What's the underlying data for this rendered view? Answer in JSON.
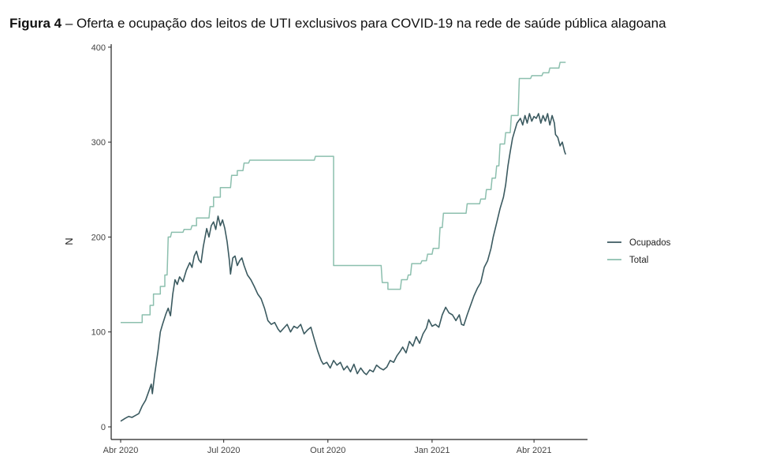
{
  "title_bold": "Figura 4",
  "title_rest": " – Oferta e ocupação dos leitos de UTI exclusivos para COVID-19 na rede de saúde pública alagoana",
  "chart_data": {
    "type": "line",
    "title": "Figura 4 – Oferta e ocupação dos leitos de UTI exclusivos para COVID-19 na rede de saúde pública alagoana",
    "xlabel": "",
    "ylabel": "N",
    "x_unit": "days since 2020-04-01",
    "xlim": [
      0,
      410
    ],
    "ylim": [
      0,
      400
    ],
    "x_ticks": [
      {
        "day": 0,
        "label": "Abr 2020"
      },
      {
        "day": 91,
        "label": "Jul 2020"
      },
      {
        "day": 183,
        "label": "Out 2020"
      },
      {
        "day": 275,
        "label": "Jan 2021"
      },
      {
        "day": 365,
        "label": "Abr 2021"
      }
    ],
    "y_ticks": [
      0,
      100,
      200,
      300,
      400
    ],
    "grid": false,
    "legend_position": "right",
    "colors": {
      "Ocupados": "#3b5a60",
      "Total": "#8cbfae"
    },
    "series": [
      {
        "name": "Ocupados",
        "shape": "line",
        "points": [
          [
            0,
            6
          ],
          [
            4,
            9
          ],
          [
            7,
            11
          ],
          [
            10,
            10
          ],
          [
            13,
            12
          ],
          [
            16,
            14
          ],
          [
            19,
            22
          ],
          [
            22,
            28
          ],
          [
            25,
            38
          ],
          [
            27,
            45
          ],
          [
            28,
            35
          ],
          [
            30,
            55
          ],
          [
            33,
            80
          ],
          [
            35,
            100
          ],
          [
            37,
            108
          ],
          [
            40,
            119
          ],
          [
            42,
            125
          ],
          [
            44,
            117
          ],
          [
            46,
            140
          ],
          [
            48,
            155
          ],
          [
            50,
            150
          ],
          [
            52,
            158
          ],
          [
            55,
            153
          ],
          [
            58,
            165
          ],
          [
            61,
            173
          ],
          [
            63,
            168
          ],
          [
            65,
            180
          ],
          [
            67,
            185
          ],
          [
            69,
            176
          ],
          [
            71,
            173
          ],
          [
            73,
            190
          ],
          [
            76,
            209
          ],
          [
            78,
            200
          ],
          [
            80,
            212
          ],
          [
            82,
            216
          ],
          [
            84,
            208
          ],
          [
            86,
            222
          ],
          [
            88,
            212
          ],
          [
            90,
            218
          ],
          [
            92,
            209
          ],
          [
            94,
            195
          ],
          [
            96,
            175
          ],
          [
            97,
            161
          ],
          [
            99,
            178
          ],
          [
            101,
            180
          ],
          [
            103,
            170
          ],
          [
            105,
            175
          ],
          [
            107,
            178
          ],
          [
            109,
            170
          ],
          [
            112,
            160
          ],
          [
            115,
            155
          ],
          [
            118,
            148
          ],
          [
            121,
            140
          ],
          [
            124,
            135
          ],
          [
            127,
            125
          ],
          [
            130,
            112
          ],
          [
            133,
            108
          ],
          [
            136,
            110
          ],
          [
            139,
            103
          ],
          [
            141,
            100
          ],
          [
            144,
            104
          ],
          [
            147,
            108
          ],
          [
            150,
            100
          ],
          [
            153,
            106
          ],
          [
            156,
            104
          ],
          [
            159,
            108
          ],
          [
            162,
            98
          ],
          [
            165,
            102
          ],
          [
            168,
            105
          ],
          [
            171,
            92
          ],
          [
            174,
            80
          ],
          [
            177,
            70
          ],
          [
            179,
            66
          ],
          [
            182,
            68
          ],
          [
            185,
            62
          ],
          [
            188,
            70
          ],
          [
            191,
            65
          ],
          [
            194,
            68
          ],
          [
            197,
            60
          ],
          [
            200,
            64
          ],
          [
            203,
            58
          ],
          [
            206,
            66
          ],
          [
            209,
            56
          ],
          [
            212,
            62
          ],
          [
            215,
            57
          ],
          [
            217,
            55
          ],
          [
            220,
            60
          ],
          [
            223,
            58
          ],
          [
            226,
            65
          ],
          [
            229,
            62
          ],
          [
            232,
            60
          ],
          [
            235,
            63
          ],
          [
            238,
            70
          ],
          [
            241,
            68
          ],
          [
            244,
            75
          ],
          [
            247,
            80
          ],
          [
            249,
            84
          ],
          [
            252,
            78
          ],
          [
            255,
            90
          ],
          [
            258,
            85
          ],
          [
            261,
            95
          ],
          [
            264,
            88
          ],
          [
            267,
            98
          ],
          [
            270,
            104
          ],
          [
            272,
            113
          ],
          [
            275,
            106
          ],
          [
            278,
            108
          ],
          [
            281,
            105
          ],
          [
            284,
            118
          ],
          [
            287,
            126
          ],
          [
            290,
            120
          ],
          [
            293,
            118
          ],
          [
            296,
            112
          ],
          [
            299,
            118
          ],
          [
            301,
            108
          ],
          [
            303,
            107
          ],
          [
            306,
            118
          ],
          [
            309,
            128
          ],
          [
            312,
            138
          ],
          [
            315,
            146
          ],
          [
            318,
            152
          ],
          [
            321,
            168
          ],
          [
            324,
            175
          ],
          [
            327,
            188
          ],
          [
            329,
            200
          ],
          [
            332,
            215
          ],
          [
            335,
            230
          ],
          [
            338,
            242
          ],
          [
            340,
            255
          ],
          [
            342,
            275
          ],
          [
            344,
            290
          ],
          [
            346,
            304
          ],
          [
            348,
            312
          ],
          [
            350,
            320
          ],
          [
            353,
            325
          ],
          [
            355,
            318
          ],
          [
            357,
            328
          ],
          [
            359,
            320
          ],
          [
            361,
            330
          ],
          [
            363,
            322
          ],
          [
            365,
            327
          ],
          [
            367,
            325
          ],
          [
            369,
            330
          ],
          [
            371,
            320
          ],
          [
            373,
            328
          ],
          [
            375,
            322
          ],
          [
            377,
            330
          ],
          [
            379,
            318
          ],
          [
            381,
            328
          ],
          [
            383,
            320
          ],
          [
            384,
            308
          ],
          [
            386,
            305
          ],
          [
            388,
            296
          ],
          [
            390,
            300
          ],
          [
            392,
            290
          ],
          [
            393,
            287
          ]
        ]
      },
      {
        "name": "Total",
        "shape": "step",
        "points": [
          [
            0,
            110
          ],
          [
            19,
            110
          ],
          [
            19,
            118
          ],
          [
            26,
            118
          ],
          [
            26,
            128
          ],
          [
            29,
            128
          ],
          [
            29,
            140
          ],
          [
            35,
            140
          ],
          [
            35,
            148
          ],
          [
            39,
            148
          ],
          [
            39,
            160
          ],
          [
            41,
            160
          ],
          [
            42,
            200
          ],
          [
            44,
            200
          ],
          [
            45,
            205
          ],
          [
            55,
            205
          ],
          [
            56,
            208
          ],
          [
            62,
            208
          ],
          [
            63,
            212
          ],
          [
            67,
            212
          ],
          [
            67,
            220
          ],
          [
            78,
            220
          ],
          [
            79,
            232
          ],
          [
            82,
            232
          ],
          [
            82,
            242
          ],
          [
            88,
            242
          ],
          [
            88,
            252
          ],
          [
            97,
            252
          ],
          [
            98,
            265
          ],
          [
            103,
            265
          ],
          [
            103,
            270
          ],
          [
            108,
            270
          ],
          [
            109,
            278
          ],
          [
            113,
            278
          ],
          [
            114,
            281
          ],
          [
            171,
            281
          ],
          [
            172,
            285
          ],
          [
            188,
            285
          ],
          [
            188,
            170
          ],
          [
            230,
            170
          ],
          [
            231,
            152
          ],
          [
            236,
            152
          ],
          [
            236,
            145
          ],
          [
            247,
            145
          ],
          [
            248,
            155
          ],
          [
            253,
            155
          ],
          [
            254,
            160
          ],
          [
            256,
            160
          ],
          [
            257,
            172
          ],
          [
            265,
            172
          ],
          [
            266,
            175
          ],
          [
            270,
            175
          ],
          [
            271,
            182
          ],
          [
            275,
            182
          ],
          [
            276,
            188
          ],
          [
            281,
            188
          ],
          [
            282,
            210
          ],
          [
            284,
            210
          ],
          [
            285,
            225
          ],
          [
            305,
            225
          ],
          [
            306,
            235
          ],
          [
            317,
            235
          ],
          [
            318,
            240
          ],
          [
            322,
            240
          ],
          [
            323,
            250
          ],
          [
            327,
            250
          ],
          [
            328,
            262
          ],
          [
            331,
            262
          ],
          [
            332,
            275
          ],
          [
            334,
            275
          ],
          [
            335,
            298
          ],
          [
            339,
            298
          ],
          [
            340,
            310
          ],
          [
            344,
            310
          ],
          [
            345,
            328
          ],
          [
            351,
            328
          ],
          [
            352,
            367
          ],
          [
            362,
            367
          ],
          [
            363,
            370
          ],
          [
            372,
            370
          ],
          [
            373,
            373
          ],
          [
            378,
            373
          ],
          [
            379,
            378
          ],
          [
            387,
            378
          ],
          [
            388,
            384
          ],
          [
            393,
            384
          ]
        ]
      }
    ]
  }
}
